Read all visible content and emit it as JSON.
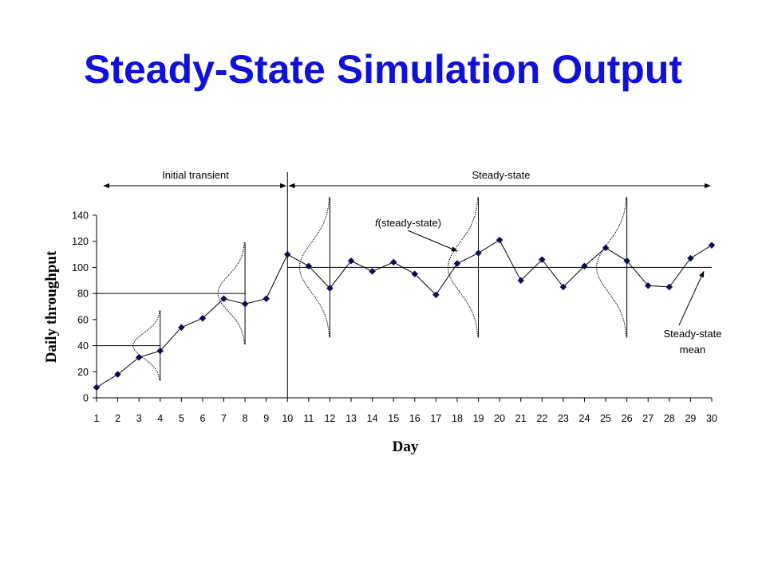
{
  "page": {
    "title": "Steady-State Simulation Output"
  },
  "chart_data": {
    "type": "line",
    "xlabel": "Day",
    "ylabel": "Daily throughput",
    "xlim": [
      1,
      30
    ],
    "ylim": [
      0,
      140
    ],
    "x": [
      1,
      2,
      3,
      4,
      5,
      6,
      7,
      8,
      9,
      10,
      11,
      12,
      13,
      14,
      15,
      16,
      17,
      18,
      19,
      20,
      21,
      22,
      23,
      24,
      25,
      26,
      27,
      28,
      29,
      30
    ],
    "x_ticks": [
      "1",
      "2",
      "3",
      "4",
      "5",
      "6",
      "7",
      "8",
      "9",
      "10",
      "11",
      "12",
      "13",
      "14",
      "15",
      "16",
      "17",
      "18",
      "19",
      "20",
      "21",
      "22",
      "23",
      "24",
      "25",
      "26",
      "27",
      "28",
      "29",
      "30"
    ],
    "y_ticks": [
      "0",
      "20",
      "40",
      "60",
      "80",
      "100",
      "120",
      "140"
    ],
    "series": [
      {
        "values": [
          8,
          18,
          31,
          36,
          54,
          61,
          76,
          72,
          76,
          110,
          101,
          84,
          105,
          97,
          104,
          95,
          79,
          103,
          111,
          121,
          90,
          106,
          85,
          101,
          115,
          105,
          86,
          85,
          107,
          117
        ],
        "color": "#0a0a5a"
      }
    ],
    "reference_lines": [
      {
        "y": 40,
        "x_from": 1,
        "x_to": 4
      },
      {
        "y": 80,
        "x_from": 1,
        "x_to": 8
      },
      {
        "y": 100,
        "x_from": 10,
        "x_to": 30
      }
    ],
    "distribution_curves": [
      {
        "x": 4,
        "mean": 40
      },
      {
        "x": 8,
        "mean": 80
      },
      {
        "x": 12,
        "mean": 100
      },
      {
        "x": 19,
        "mean": 100
      },
      {
        "x": 26,
        "mean": 100
      }
    ],
    "divider_x": 10,
    "annotations": {
      "initial_transient": "Initial transient",
      "steady_state": "Steady-state",
      "f_label_italic": "f",
      "f_label_rest": "(steady-state)",
      "mean_line1": "Steady-state",
      "mean_line2": "mean"
    },
    "grid": false,
    "legend": "none"
  }
}
